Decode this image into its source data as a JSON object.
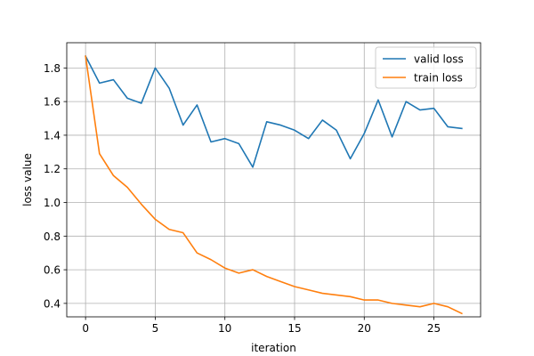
{
  "chart_data": {
    "type": "line",
    "xlabel": "iteration",
    "ylabel": "loss value",
    "xlim": [
      -1.35,
      28.35
    ],
    "ylim": [
      0.32,
      1.95
    ],
    "xticks": [
      0,
      5,
      10,
      15,
      20,
      25
    ],
    "yticks": [
      0.4,
      0.6,
      0.8,
      1.0,
      1.2,
      1.4,
      1.6,
      1.8
    ],
    "xtick_labels": [
      "0",
      "5",
      "10",
      "15",
      "20",
      "25"
    ],
    "ytick_labels": [
      "0.4",
      "0.6",
      "0.8",
      "1.0",
      "1.2",
      "1.4",
      "1.6",
      "1.8"
    ],
    "grid": true,
    "legend_position": "top-right",
    "x": [
      0,
      1,
      2,
      3,
      4,
      5,
      6,
      7,
      8,
      9,
      10,
      11,
      12,
      13,
      14,
      15,
      16,
      17,
      18,
      19,
      20,
      21,
      22,
      23,
      24,
      25,
      26,
      27
    ],
    "series": [
      {
        "name": "valid loss",
        "color": "#1f77b4",
        "values": [
          1.87,
          1.71,
          1.73,
          1.62,
          1.59,
          1.8,
          1.68,
          1.46,
          1.58,
          1.36,
          1.38,
          1.35,
          1.21,
          1.48,
          1.46,
          1.43,
          1.38,
          1.49,
          1.43,
          1.26,
          1.41,
          1.61,
          1.39,
          1.6,
          1.55,
          1.56,
          1.45,
          1.44
        ]
      },
      {
        "name": "train loss",
        "color": "#ff7f0e",
        "values": [
          1.87,
          1.29,
          1.16,
          1.09,
          0.99,
          0.9,
          0.84,
          0.82,
          0.7,
          0.66,
          0.61,
          0.58,
          0.6,
          0.56,
          0.53,
          0.5,
          0.48,
          0.46,
          0.45,
          0.44,
          0.42,
          0.42,
          0.4,
          0.39,
          0.38,
          0.4,
          0.38,
          0.34
        ]
      }
    ]
  }
}
